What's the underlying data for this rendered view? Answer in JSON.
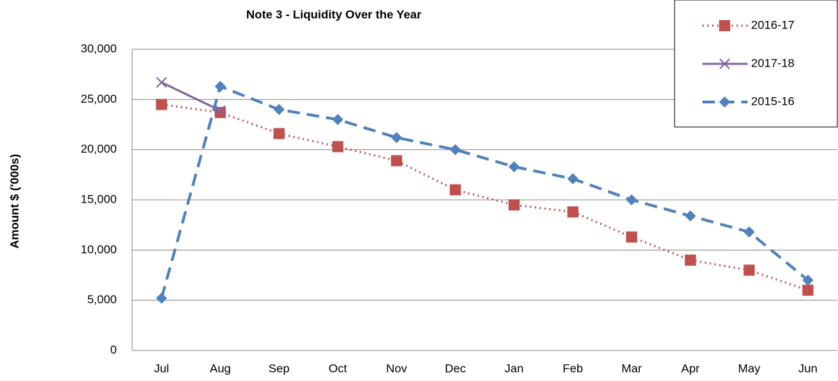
{
  "chart_data": {
    "type": "line",
    "title": "Note 3 - Liquidity Over the Year",
    "y_label": "Amount $ ('000s)",
    "categories": [
      "Jul",
      "Aug",
      "Sep",
      "Oct",
      "Nov",
      "Dec",
      "Jan",
      "Feb",
      "Mar",
      "Apr",
      "May",
      "Jun"
    ],
    "series": [
      {
        "name": "2016-17",
        "color": "#c0504d",
        "values": [
          24500,
          23700,
          21600,
          20300,
          18900,
          16000,
          14500,
          13800,
          11300,
          9000,
          8000,
          6000
        ]
      },
      {
        "name": "2017-18",
        "color": "#8064a2",
        "values": [
          26700,
          23900,
          null,
          null,
          null,
          null,
          null,
          null,
          null,
          null,
          null,
          null
        ]
      },
      {
        "name": "2015-16",
        "color": "#4f81bd",
        "values": [
          5200,
          26300,
          24000,
          23000,
          21200,
          20000,
          18300,
          17100,
          15000,
          13400,
          11800,
          7000
        ]
      }
    ],
    "ylim": [
      0,
      30000
    ],
    "yticks": [
      0,
      {
        "value": 5000,
        "label": "5,000"
      },
      {
        "value": 10000,
        "label": "10,000"
      },
      {
        "value": 15000,
        "label": "15,000"
      },
      {
        "value": 20000,
        "label": "20,000"
      },
      {
        "value": 25000,
        "label": "25,000"
      },
      {
        "value": 30000,
        "label": "30,000"
      }
    ],
    "grid": true,
    "legend": "top-right"
  }
}
